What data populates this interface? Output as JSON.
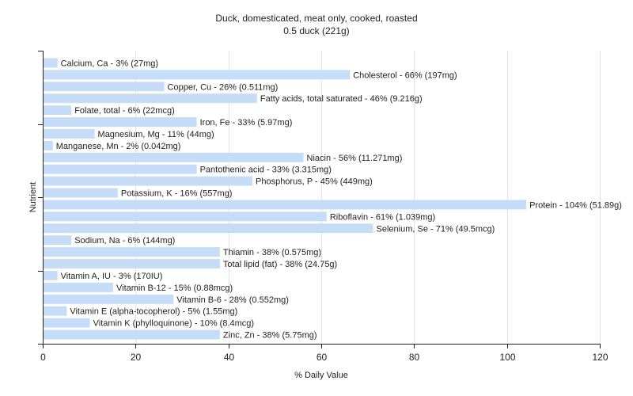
{
  "chart_data": {
    "type": "bar",
    "orientation": "horizontal",
    "title": "Duck, domesticated, meat only, cooked, roasted",
    "subtitle": "0.5 duck (221g)",
    "xlabel": "% Daily Value",
    "ylabel": "Nutrient",
    "xlim": [
      0,
      120
    ],
    "xticks": [
      "0",
      "20",
      "40",
      "60",
      "80",
      "100",
      "120"
    ],
    "grid": "vertical",
    "bar_color": "#c6ddf8",
    "categories": [
      "Calcium, Ca",
      "Cholesterol",
      "Copper, Cu",
      "Fatty acids, total saturated",
      "Folate, total",
      "Iron, Fe",
      "Magnesium, Mg",
      "Manganese, Mn",
      "Niacin",
      "Pantothenic acid",
      "Phosphorus, P",
      "Potassium, K",
      "Protein",
      "Riboflavin",
      "Selenium, Se",
      "Sodium, Na",
      "Thiamin",
      "Total lipid (fat)",
      "Vitamin A, IU",
      "Vitamin B-12",
      "Vitamin B-6",
      "Vitamin E (alpha-tocopherol)",
      "Vitamin K (phylloquinone)",
      "Zinc, Zn"
    ],
    "values": [
      3,
      66,
      26,
      46,
      6,
      33,
      11,
      2,
      56,
      33,
      45,
      16,
      104,
      61,
      71,
      6,
      38,
      38,
      3,
      15,
      28,
      5,
      10,
      38
    ],
    "labels": [
      "Calcium, Ca - 3% (27mg)",
      "Cholesterol - 66% (197mg)",
      "Copper, Cu - 26% (0.511mg)",
      "Fatty acids, total saturated - 46% (9.216g)",
      "Folate, total - 6% (22mcg)",
      "Iron, Fe - 33% (5.97mg)",
      "Magnesium, Mg - 11% (44mg)",
      "Manganese, Mn - 2% (0.042mg)",
      "Niacin - 56% (11.271mg)",
      "Pantothenic acid - 33% (3.315mg)",
      "Phosphorus, P - 45% (449mg)",
      "Potassium, K - 16% (557mg)",
      "Protein - 104% (51.89g)",
      "Riboflavin - 61% (1.039mg)",
      "Selenium, Se - 71% (49.5mcg)",
      "Sodium, Na - 6% (144mg)",
      "Thiamin - 38% (0.575mg)",
      "Total lipid (fat) - 38% (24.75g)",
      "Vitamin A, IU - 3% (170IU)",
      "Vitamin B-12 - 15% (0.88mcg)",
      "Vitamin B-6 - 28% (0.552mg)",
      "Vitamin E (alpha-tocopherol) - 5% (1.55mg)",
      "Vitamin K (phylloquinone) - 10% (8.4mcg)",
      "Zinc, Zn - 38% (5.75mg)"
    ]
  }
}
